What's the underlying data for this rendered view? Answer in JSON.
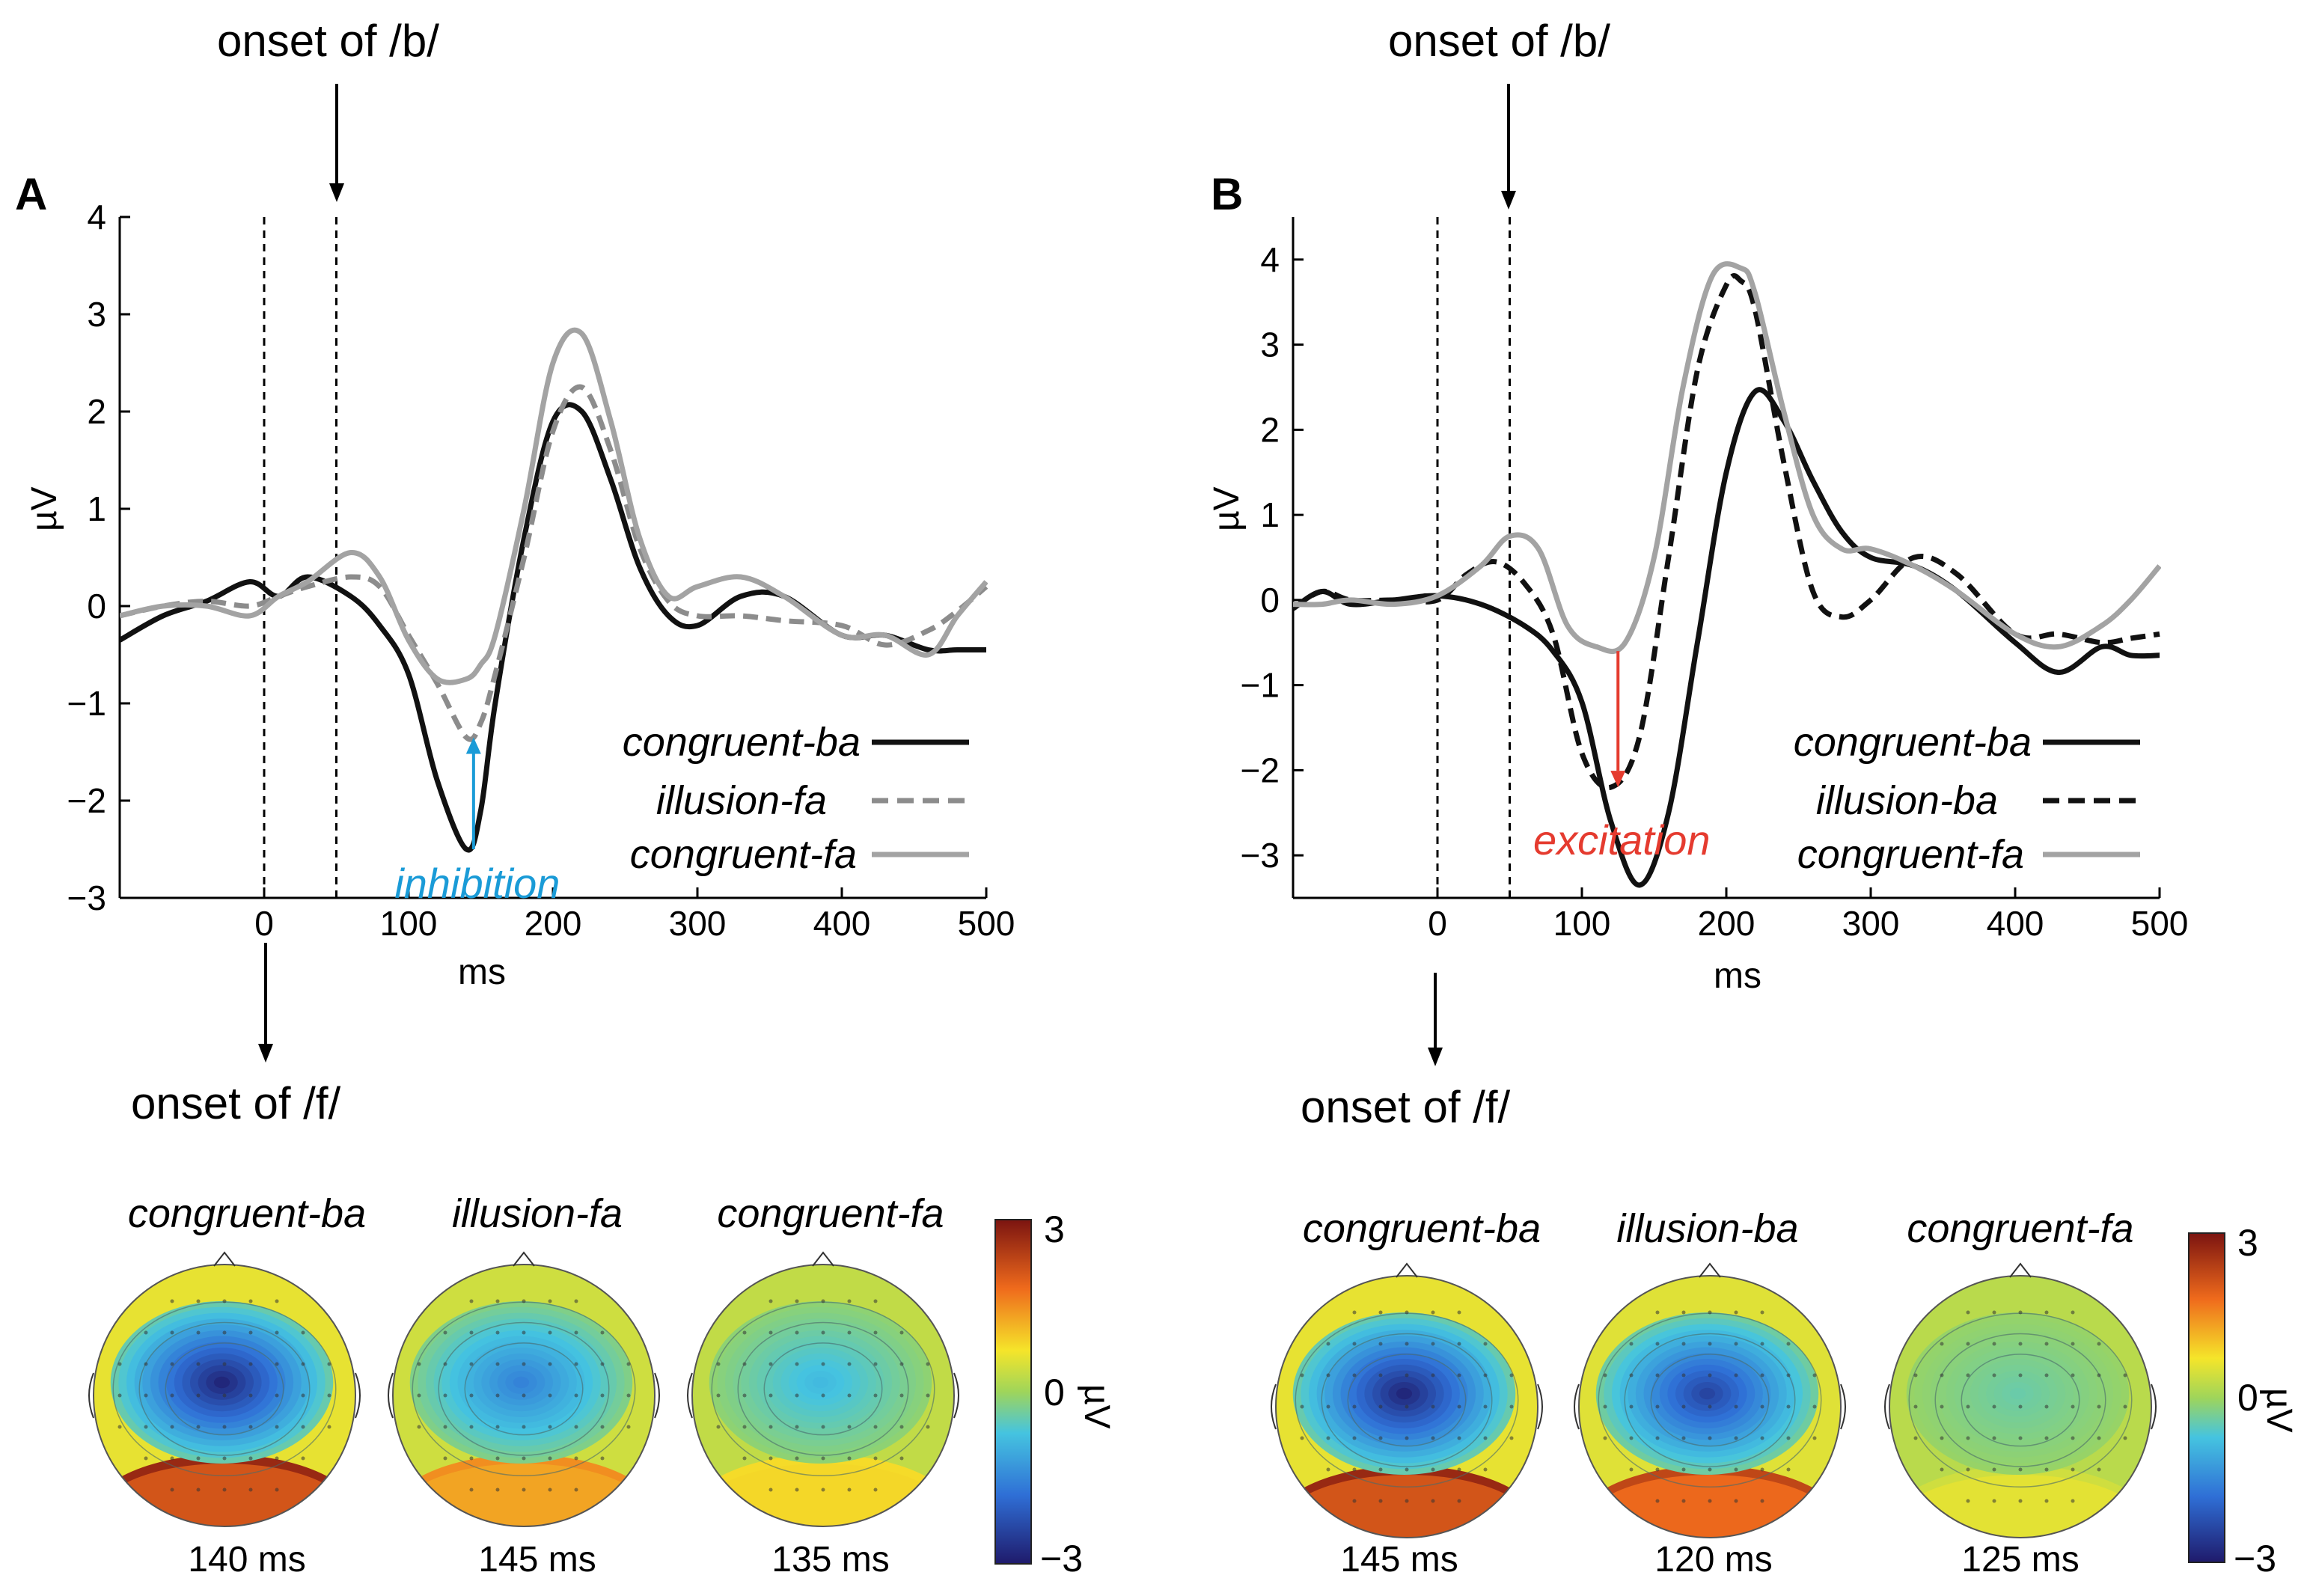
{
  "chart_data": [
    {
      "panel": "A",
      "type": "line",
      "xlabel": "ms",
      "ylabel": "µV",
      "xlim": [
        -100,
        500
      ],
      "ylim": [
        -3,
        4
      ],
      "xticks": [
        "0",
        "100",
        "200",
        "300",
        "400",
        "500"
      ],
      "yticks": [
        "4",
        "3",
        "2",
        "1",
        "0",
        "−1",
        "−2",
        "−3"
      ],
      "onset_top": "onset of /b/",
      "onset_bottom": "onset of /f/",
      "markers_ms": [
        0,
        50
      ],
      "series": [
        {
          "name": "congruent-ba",
          "color": "#111111",
          "dash": "solid",
          "x": [
            -100,
            -70,
            -40,
            -10,
            10,
            30,
            60,
            80,
            100,
            120,
            140,
            150,
            160,
            180,
            200,
            220,
            240,
            260,
            280,
            300,
            330,
            360,
            400,
            430,
            460,
            480,
            500
          ],
          "y": [
            -0.35,
            -0.1,
            0.05,
            0.25,
            0.1,
            0.3,
            0.1,
            -0.2,
            -0.7,
            -1.8,
            -2.5,
            -2.1,
            -1.0,
            0.7,
            1.9,
            2.0,
            1.3,
            0.4,
            -0.1,
            -0.2,
            0.1,
            0.1,
            -0.3,
            -0.3,
            -0.45,
            -0.45,
            -0.45
          ]
        },
        {
          "name": "illusion-fa",
          "color": "#8c8c8c",
          "dash": "dashed",
          "x": [
            -100,
            -70,
            -40,
            -10,
            10,
            30,
            60,
            80,
            100,
            120,
            140,
            150,
            160,
            180,
            200,
            220,
            240,
            260,
            280,
            300,
            330,
            360,
            400,
            430,
            460,
            480,
            500
          ],
          "y": [
            -0.1,
            0.0,
            0.05,
            0.0,
            0.1,
            0.2,
            0.3,
            0.2,
            -0.3,
            -0.8,
            -1.35,
            -1.2,
            -0.7,
            0.5,
            1.8,
            2.25,
            1.6,
            0.6,
            0.05,
            -0.1,
            -0.1,
            -0.15,
            -0.2,
            -0.4,
            -0.25,
            -0.05,
            0.2
          ]
        },
        {
          "name": "congruent-fa",
          "color": "#a3a3a3",
          "dash": "solid",
          "x": [
            -100,
            -70,
            -40,
            -10,
            10,
            30,
            60,
            80,
            100,
            120,
            140,
            150,
            160,
            180,
            200,
            220,
            240,
            260,
            280,
            300,
            330,
            360,
            400,
            430,
            460,
            480,
            500
          ],
          "y": [
            -0.1,
            0.0,
            0.0,
            -0.1,
            0.1,
            0.25,
            0.55,
            0.3,
            -0.35,
            -0.75,
            -0.75,
            -0.6,
            -0.3,
            1.0,
            2.5,
            2.8,
            1.9,
            0.7,
            0.1,
            0.2,
            0.3,
            0.1,
            -0.3,
            -0.3,
            -0.5,
            -0.1,
            0.25
          ]
        }
      ],
      "annotation": {
        "text": "inhibition",
        "color": "#1a9bd7",
        "x_ms": 145,
        "from": -2.5,
        "to": -1.35
      }
    },
    {
      "panel": "B",
      "type": "line",
      "xlabel": "ms",
      "ylabel": "µV",
      "xlim": [
        -100,
        500
      ],
      "ylim": [
        -3.5,
        4.5
      ],
      "xticks": [
        "0",
        "100",
        "200",
        "300",
        "400",
        "500"
      ],
      "yticks": [
        "4",
        "3",
        "2",
        "1",
        "0",
        "−1",
        "−2",
        "−3"
      ],
      "onset_top": "onset of /b/",
      "onset_bottom": "onset of /f/",
      "markers_ms": [
        0,
        50
      ],
      "series": [
        {
          "name": "congruent-ba",
          "color": "#111111",
          "dash": "solid",
          "x": [
            -100,
            -80,
            -60,
            -30,
            0,
            30,
            60,
            80,
            100,
            120,
            140,
            160,
            180,
            200,
            220,
            240,
            260,
            280,
            300,
            330,
            360,
            400,
            430,
            460,
            480,
            500
          ],
          "y": [
            -0.1,
            0.1,
            -0.05,
            0.0,
            0.05,
            -0.05,
            -0.3,
            -0.6,
            -1.2,
            -2.6,
            -3.35,
            -2.5,
            -0.5,
            1.5,
            2.45,
            2.1,
            1.4,
            0.8,
            0.5,
            0.4,
            0.1,
            -0.5,
            -0.85,
            -0.55,
            -0.65,
            -0.65
          ]
        },
        {
          "name": "illusion-ba",
          "color": "#111111",
          "dash": "dashed",
          "x": [
            -100,
            -80,
            -60,
            -30,
            0,
            20,
            40,
            60,
            80,
            100,
            120,
            140,
            160,
            180,
            200,
            210,
            220,
            240,
            260,
            280,
            300,
            330,
            360,
            400,
            430,
            460,
            480,
            500
          ],
          "y": [
            -0.1,
            0.1,
            0.0,
            0.0,
            0.0,
            0.3,
            0.45,
            0.2,
            -0.4,
            -1.8,
            -2.2,
            -1.6,
            0.5,
            2.7,
            3.7,
            3.75,
            3.4,
            1.6,
            0.1,
            -0.2,
            0.0,
            0.5,
            0.3,
            -0.4,
            -0.4,
            -0.5,
            -0.45,
            -0.4
          ]
        },
        {
          "name": "congruent-fa",
          "color": "#a3a3a3",
          "dash": "solid",
          "x": [
            -100,
            -80,
            -60,
            -30,
            0,
            30,
            50,
            70,
            90,
            110,
            130,
            150,
            170,
            190,
            210,
            220,
            240,
            260,
            280,
            300,
            330,
            360,
            400,
            430,
            460,
            480,
            500
          ],
          "y": [
            -0.05,
            -0.05,
            0.0,
            -0.05,
            0.05,
            0.4,
            0.75,
            0.6,
            -0.3,
            -0.55,
            -0.5,
            0.5,
            2.5,
            3.8,
            3.9,
            3.6,
            2.2,
            1.0,
            0.6,
            0.6,
            0.4,
            0.1,
            -0.4,
            -0.55,
            -0.3,
            0.0,
            0.4
          ]
        }
      ],
      "annotation": {
        "text": "excitation",
        "color": "#e53b2f",
        "x_ms": 125,
        "from": -0.6,
        "to": -2.2
      }
    }
  ],
  "topomaps": {
    "A": [
      {
        "title": "congruent-ba",
        "time": "140 ms",
        "strength": 1.0
      },
      {
        "title": "illusion-fa",
        "time": "145 ms",
        "strength": 0.55
      },
      {
        "title": "congruent-fa",
        "time": "135 ms",
        "strength": 0.3
      }
    ],
    "B": [
      {
        "title": "congruent-ba",
        "time": "145 ms",
        "strength": 1.0
      },
      {
        "title": "illusion-ba",
        "time": "120 ms",
        "strength": 0.85
      },
      {
        "title": "congruent-fa",
        "time": "125 ms",
        "strength": 0.15
      }
    ],
    "colorbar": {
      "max": "3",
      "mid": "0",
      "min": "−3",
      "unit": "µV"
    }
  }
}
